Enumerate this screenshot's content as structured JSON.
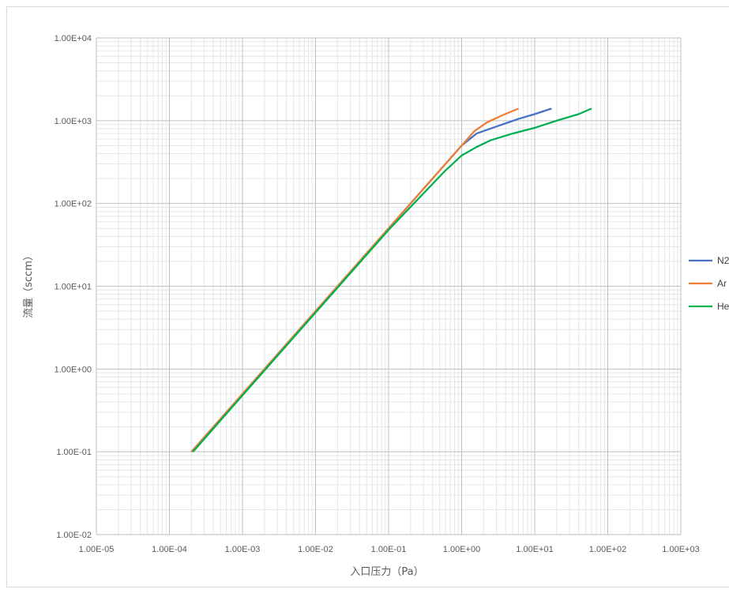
{
  "chart_data": {
    "type": "line",
    "title": "",
    "xlabel": "入口压力（Pa）",
    "ylabel": "流量（sccm）",
    "xscale": "log",
    "yscale": "log",
    "xlim": [
      1e-05,
      1000
    ],
    "ylim": [
      0.01,
      10000
    ],
    "x_tick_labels": [
      "1.00E-05",
      "1.00E-04",
      "1.00E-03",
      "1.00E-02",
      "1.00E-01",
      "1.00E+00",
      "1.00E+01",
      "1.00E+02",
      "1.00E+03"
    ],
    "y_tick_labels": [
      "1.00E-02",
      "1.00E-01",
      "1.00E+00",
      "1.00E+01",
      "1.00E+02",
      "1.00E+03",
      "1.00E+04"
    ],
    "grid": true,
    "minor_grid": true,
    "legend_position": "right",
    "series": [
      {
        "name": "N2",
        "color": "#4472C4",
        "points": [
          [
            0.0002,
            0.1
          ],
          [
            0.001,
            0.5
          ],
          [
            0.01,
            5
          ],
          [
            0.1,
            50
          ],
          [
            1.0,
            500
          ],
          [
            1.6,
            700
          ],
          [
            3,
            850
          ],
          [
            6,
            1050
          ],
          [
            10,
            1200
          ],
          [
            17,
            1400
          ]
        ]
      },
      {
        "name": "Ar",
        "color": "#ED7D31",
        "points": [
          [
            0.0002,
            0.1
          ],
          [
            0.001,
            0.5
          ],
          [
            0.01,
            5
          ],
          [
            0.1,
            50
          ],
          [
            1.0,
            500
          ],
          [
            1.5,
            750
          ],
          [
            2.2,
            950
          ],
          [
            3.5,
            1150
          ],
          [
            6,
            1400
          ]
        ]
      },
      {
        "name": "He",
        "color": "#00B050",
        "points": [
          [
            0.00021,
            0.1
          ],
          [
            0.001,
            0.48
          ],
          [
            0.01,
            4.8
          ],
          [
            0.1,
            48
          ],
          [
            0.6,
            250
          ],
          [
            1.0,
            380
          ],
          [
            1.6,
            480
          ],
          [
            2.5,
            580
          ],
          [
            5,
            700
          ],
          [
            10,
            820
          ],
          [
            20,
            1000
          ],
          [
            40,
            1200
          ],
          [
            60,
            1400
          ]
        ]
      }
    ]
  }
}
